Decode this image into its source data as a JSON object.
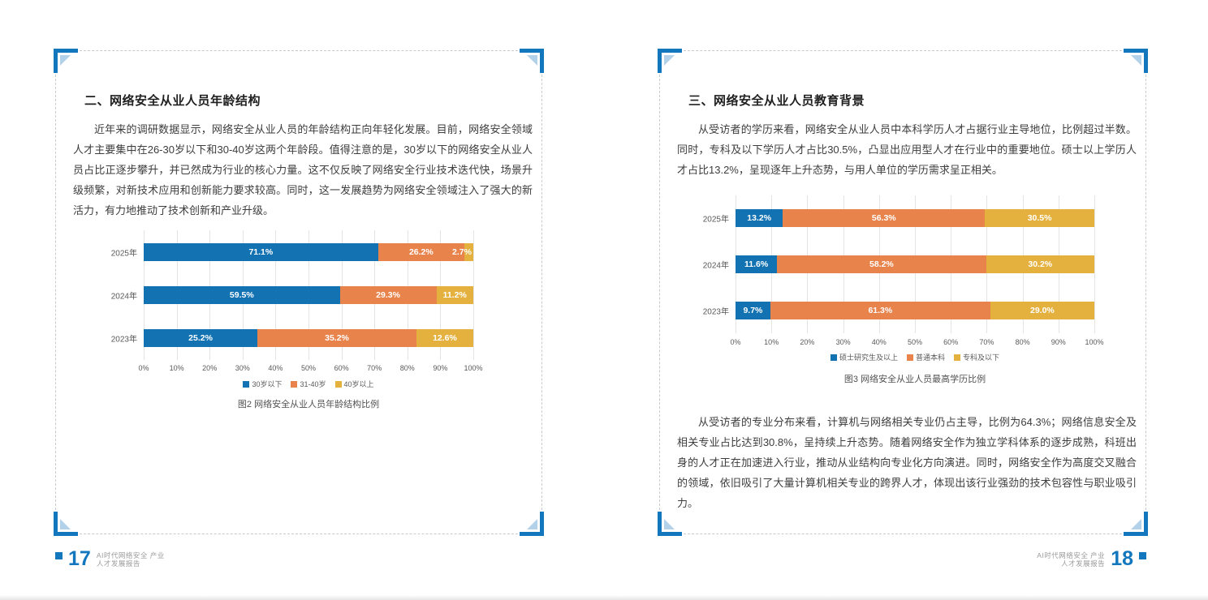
{
  "left_page": {
    "section_title": "二、网络安全从业人员年龄结构",
    "paragraph": "近年来的调研数据显示，网络安全从业人员的年龄结构正向年轻化发展。目前，网络安全领域人才主要集中在26-30岁以下和30-40岁这两个年龄段。值得注意的是，30岁以下的网络安全从业人员占比正逐步攀升，并已然成为行业的核心力量。这不仅反映了网络安全行业技术迭代快，场景升级频繁，对新技术应用和创新能力要求较高。同时，这一发展趋势为网络安全领域注入了强大的新活力，有力地推动了技术创新和产业升级。",
    "footer": {
      "page_number": "17",
      "report_title_line1": "AI时代网络安全 产业",
      "report_title_line2": "人才发展报告"
    }
  },
  "right_page": {
    "section_title": "三、网络安全从业人员教育背景",
    "paragraph_top": "从受访者的学历来看，网络安全从业人员中本科学历人才占据行业主导地位，比例超过半数。同时，专科及以下学历人才占比30.5%，凸显出应用型人才在行业中的重要地位。硕士以上学历人才占比13.2%，呈现逐年上升态势，与用人单位的学历需求呈正相关。",
    "paragraph_bottom": "从受访者的专业分布来看，计算机与网络相关专业仍占主导，比例为64.3%；网络信息安全及相关专业占比达到30.8%，呈持续上升态势。随着网络安全作为独立学科体系的逐步成熟，科班出身的人才正在加速进入行业，推动从业结构向专业化方向演进。同时，网络安全作为高度交叉融合的领域，依旧吸引了大量计算机相关专业的跨界人才，体现出该行业强劲的技术包容性与职业吸引力。",
    "footer": {
      "page_number": "18",
      "report_title_line1": "AI时代网络安全 产业",
      "report_title_line2": "人才发展报告"
    }
  },
  "chart_data": [
    {
      "type": "bar",
      "variant": "horizontal-stacked-normalized",
      "title": "图2 网络安全从业人员年龄结构比例",
      "categories": [
        "2025年",
        "2024年",
        "2023年"
      ],
      "series": [
        {
          "name": "30岁以下",
          "color": "#1272b2",
          "values": [
            71.1,
            59.5,
            25.2
          ],
          "labels": [
            "71.1%",
            "59.5%",
            "25.2%"
          ]
        },
        {
          "name": "31-40岁",
          "color": "#e8834c",
          "values": [
            26.2,
            29.3,
            35.2
          ],
          "labels": [
            "26.2%",
            "29.3%",
            "35.2%"
          ]
        },
        {
          "name": "40岁以上",
          "color": "#e4b13e",
          "values": [
            2.7,
            11.2,
            12.6
          ],
          "labels": [
            "2.7%",
            "11.2%",
            "12.6%"
          ]
        }
      ],
      "x_ticks": [
        "0%",
        "10%",
        "20%",
        "30%",
        "40%",
        "50%",
        "60%",
        "70%",
        "80%",
        "90%",
        "100%"
      ],
      "xlim": [
        0,
        100
      ],
      "grid": true,
      "legend_position": "bottom"
    },
    {
      "type": "bar",
      "variant": "horizontal-stacked-normalized",
      "title": "图3 网络安全从业人员最高学历比例",
      "categories": [
        "2025年",
        "2024年",
        "2023年"
      ],
      "series": [
        {
          "name": "硕士研究生及以上",
          "color": "#1272b2",
          "values": [
            13.2,
            11.6,
            9.7
          ],
          "labels": [
            "13.2%",
            "11.6%",
            "9.7%"
          ]
        },
        {
          "name": "普通本科",
          "color": "#e8834c",
          "values": [
            56.3,
            58.2,
            61.3
          ],
          "labels": [
            "56.3%",
            "58.2%",
            "61.3%"
          ]
        },
        {
          "name": "专科及以下",
          "color": "#e4b13e",
          "values": [
            30.5,
            30.2,
            29.0
          ],
          "labels": [
            "30.5%",
            "30.2%",
            "29.0%"
          ]
        }
      ],
      "x_ticks": [
        "0%",
        "10%",
        "20%",
        "30%",
        "40%",
        "50%",
        "60%",
        "70%",
        "80%",
        "90%",
        "100%"
      ],
      "xlim": [
        0,
        100
      ],
      "grid": true,
      "legend_position": "bottom"
    }
  ],
  "colors": {
    "accent_blue": "#1272b2",
    "accent_orange": "#e8834c",
    "accent_gold": "#e4b13e",
    "corner_bracket_blue": "#1377bd",
    "corner_triangle_blue": "#b3d2ea",
    "footer_number_blue": "#1377bd"
  }
}
